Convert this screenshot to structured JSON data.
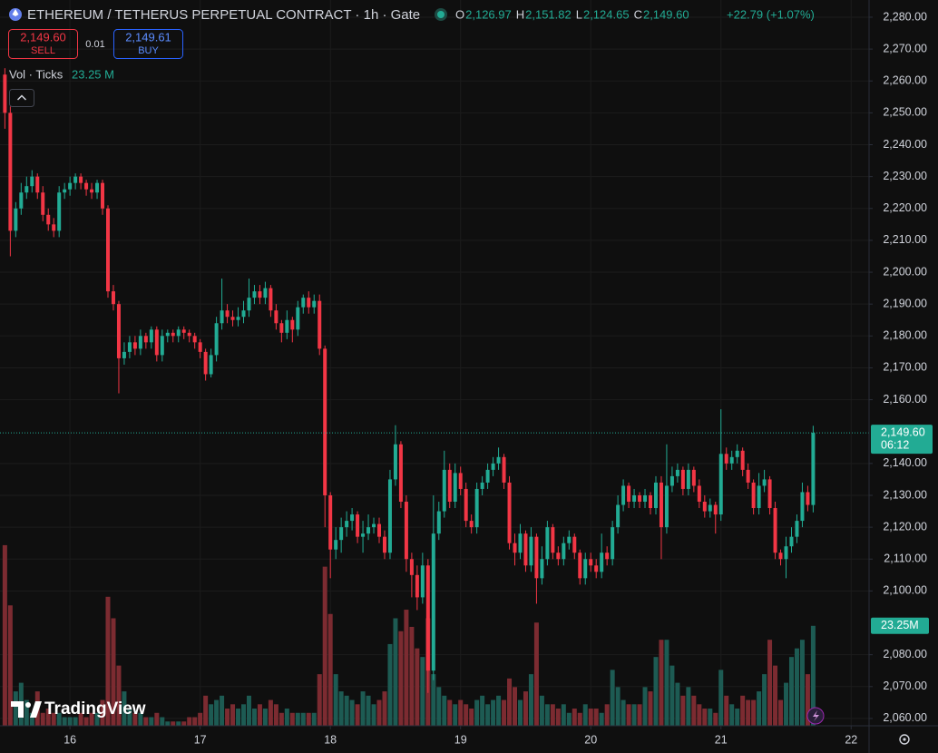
{
  "chart_data": {
    "type": "candlestick",
    "title": "ETHEREUM / TETHERUS PERPETUAL CONTRACT · 1h · Gate",
    "ohlc": [
      {
        "label": "O",
        "value": "2,126.97"
      },
      {
        "label": "H",
        "value": "2,151.82"
      },
      {
        "label": "L",
        "value": "2,124.65"
      },
      {
        "label": "C",
        "value": "2,149.60"
      }
    ],
    "change": "+22.79 (+1.07%)",
    "sell": {
      "price": "2,149.60",
      "label": "SELL"
    },
    "spread": "0.01",
    "buy": {
      "price": "2,149.61",
      "label": "BUY"
    },
    "volume_legend": {
      "label": "Vol · Ticks",
      "value": "23.25 M"
    },
    "last_price_label": "2,149.60",
    "countdown": "06:12",
    "volume_last_label": "23.25M",
    "logo": "TradingView",
    "up_color": "#22ab94",
    "down_color": "#f23645",
    "volume_up_color": "#1d5b53",
    "volume_down_color": "#7c2b31",
    "grid": true,
    "xlim": [
      -12.9,
      147.3
    ],
    "ylim": [
      2057.7,
      2285.4
    ],
    "volume_ylim": [
      0,
      50
    ],
    "xticks": [
      {
        "value": 0,
        "label": "16"
      },
      {
        "value": 24,
        "label": "17"
      },
      {
        "value": 48,
        "label": "18"
      },
      {
        "value": 72,
        "label": "19"
      },
      {
        "value": 96,
        "label": "20"
      },
      {
        "value": 120,
        "label": "21"
      },
      {
        "value": 144,
        "label": "22"
      }
    ],
    "yticks": [
      {
        "value": 2060,
        "label": "2,060.00"
      },
      {
        "value": 2070,
        "label": "2,070.00"
      },
      {
        "value": 2080,
        "label": "2,080.00"
      },
      {
        "value": 2100,
        "label": "2,100.00"
      },
      {
        "value": 2110,
        "label": "2,110.00"
      },
      {
        "value": 2120,
        "label": "2,120.00"
      },
      {
        "value": 2130,
        "label": "2,130.00"
      },
      {
        "value": 2140,
        "label": "2,140.00"
      },
      {
        "value": 2160,
        "label": "2,160.00"
      },
      {
        "value": 2170,
        "label": "2,170.00"
      },
      {
        "value": 2180,
        "label": "2,180.00"
      },
      {
        "value": 2190,
        "label": "2,190.00"
      },
      {
        "value": 2200,
        "label": "2,200.00"
      },
      {
        "value": 2210,
        "label": "2,210.00"
      },
      {
        "value": 2220,
        "label": "2,220.00"
      },
      {
        "value": 2230,
        "label": "2,230.00"
      },
      {
        "value": 2240,
        "label": "2,240.00"
      },
      {
        "value": 2250,
        "label": "2,250.00"
      },
      {
        "value": 2260,
        "label": "2,260.00"
      },
      {
        "value": 2270,
        "label": "2,270.00"
      },
      {
        "value": 2280,
        "label": "2,280.00"
      }
    ],
    "x": [
      -12,
      -11,
      -10,
      -9,
      -8,
      -7,
      -6,
      -5,
      -4,
      -3,
      -2,
      -1,
      0,
      1,
      2,
      3,
      4,
      5,
      6,
      7,
      8,
      9,
      10,
      11,
      12,
      13,
      14,
      15,
      16,
      17,
      18,
      19,
      20,
      21,
      22,
      23,
      24,
      25,
      26,
      27,
      28,
      29,
      30,
      31,
      32,
      33,
      34,
      35,
      36,
      37,
      38,
      39,
      40,
      41,
      42,
      43,
      44,
      45,
      46,
      47,
      48,
      49,
      50,
      51,
      52,
      53,
      54,
      55,
      56,
      57,
      58,
      59,
      60,
      61,
      62,
      63,
      64,
      65,
      66,
      67,
      68,
      69,
      70,
      71,
      72,
      73,
      74,
      75,
      76,
      77,
      78,
      79,
      80,
      81,
      82,
      83,
      84,
      85,
      86,
      87,
      88,
      89,
      90,
      91,
      92,
      93,
      94,
      95,
      96,
      97,
      98,
      99,
      100,
      101,
      102,
      103,
      104,
      105,
      106,
      107,
      108,
      109,
      110,
      111,
      112,
      113,
      114,
      115,
      116,
      117,
      118,
      119,
      120,
      121,
      122,
      123,
      124,
      125,
      126,
      127,
      128,
      129,
      130,
      131,
      132,
      133,
      134,
      135,
      136,
      137
    ],
    "open": [
      2262,
      2250,
      2213,
      2220,
      2225,
      2227,
      2230,
      2225,
      2218,
      2215,
      2213,
      2225,
      2226,
      2228,
      2230,
      2228,
      2226,
      2225,
      2228,
      2220,
      2194,
      2190,
      2173,
      2175,
      2178,
      2176,
      2180,
      2178,
      2182,
      2174,
      2180,
      2181,
      2180,
      2182,
      2181,
      2180,
      2178,
      2175,
      2168,
      2174,
      2184,
      2188,
      2186,
      2185,
      2186,
      2188,
      2192,
      2194,
      2192,
      2195,
      2188,
      2184,
      2181,
      2185,
      2182,
      2189,
      2192,
      2189,
      2191,
      2176,
      2130,
      2113,
      2116,
      2120,
      2122,
      2124,
      2117,
      2118,
      2120,
      2121,
      2117,
      2112,
      2135,
      2146,
      2128,
      2110,
      2105,
      2098,
      2108,
      2075,
      2118,
      2125,
      2138,
      2128,
      2137,
      2132,
      2122,
      2120,
      2132,
      2134,
      2138,
      2140,
      2142,
      2134,
      2115,
      2112,
      2118,
      2108,
      2117,
      2104,
      2110,
      2120,
      2112,
      2110,
      2115,
      2117,
      2112,
      2104,
      2110,
      2108,
      2106,
      2112,
      2110,
      2120,
      2127,
      2133,
      2128,
      2130,
      2128,
      2130,
      2126,
      2134,
      2120,
      2133,
      2136,
      2138,
      2132,
      2138,
      2133,
      2128,
      2125,
      2127,
      2124,
      2143,
      2140,
      2142,
      2144,
      2138,
      2134,
      2126,
      2133,
      2135,
      2126,
      2112,
      2110,
      2114,
      2117,
      2122,
      2131,
      2126.97
    ],
    "high": [
      2264,
      2252,
      2222,
      2228,
      2230,
      2232,
      2231,
      2227,
      2220,
      2217,
      2227,
      2228,
      2230,
      2231,
      2231,
      2229,
      2228,
      2229,
      2229,
      2221,
      2196,
      2191,
      2178,
      2180,
      2180,
      2182,
      2181,
      2183,
      2183,
      2182,
      2182,
      2182,
      2183,
      2183,
      2182,
      2181,
      2179,
      2176,
      2176,
      2186,
      2198,
      2190,
      2188,
      2189,
      2191,
      2198,
      2196,
      2196,
      2197,
      2196,
      2190,
      2185,
      2188,
      2186,
      2191,
      2193,
      2194,
      2193,
      2193,
      2177,
      2131,
      2120,
      2123,
      2125,
      2126,
      2125,
      2122,
      2124,
      2123,
      2123,
      2119,
      2138,
      2152,
      2147,
      2130,
      2112,
      2108,
      2112,
      2110,
      2130,
      2128,
      2144,
      2140,
      2140,
      2139,
      2134,
      2124,
      2134,
      2136,
      2140,
      2142,
      2145,
      2143,
      2136,
      2118,
      2121,
      2119,
      2120,
      2118,
      2114,
      2122,
      2121,
      2114,
      2117,
      2119,
      2118,
      2113,
      2112,
      2112,
      2110,
      2118,
      2114,
      2122,
      2130,
      2135,
      2134,
      2132,
      2131,
      2132,
      2131,
      2136,
      2136,
      2146,
      2139,
      2140,
      2139,
      2140,
      2139,
      2135,
      2130,
      2129,
      2128,
      2157,
      2145,
      2144,
      2146,
      2145,
      2140,
      2135,
      2137,
      2138,
      2136,
      2128,
      2113,
      2117,
      2120,
      2124,
      2134,
      2133,
      2151.82
    ],
    "low": [
      2245,
      2205,
      2211,
      2218,
      2223,
      2225,
      2223,
      2216,
      2213,
      2211,
      2211,
      2223,
      2224,
      2226,
      2226,
      2224,
      2223,
      2223,
      2218,
      2192,
      2188,
      2162,
      2171,
      2173,
      2174,
      2174,
      2176,
      2176,
      2172,
      2172,
      2178,
      2178,
      2178,
      2179,
      2178,
      2176,
      2173,
      2166,
      2167,
      2172,
      2182,
      2184,
      2183,
      2183,
      2184,
      2186,
      2190,
      2190,
      2190,
      2186,
      2182,
      2178,
      2179,
      2178,
      2180,
      2187,
      2187,
      2187,
      2174,
      2120,
      2104,
      2110,
      2112,
      2117,
      2119,
      2115,
      2112,
      2116,
      2118,
      2115,
      2110,
      2110,
      2133,
      2126,
      2106,
      2098,
      2094,
      2096,
      2068,
      2072,
      2116,
      2123,
      2126,
      2126,
      2130,
      2120,
      2118,
      2118,
      2130,
      2132,
      2136,
      2138,
      2132,
      2113,
      2108,
      2110,
      2106,
      2106,
      2096,
      2102,
      2108,
      2110,
      2108,
      2108,
      2113,
      2110,
      2102,
      2102,
      2106,
      2104,
      2104,
      2108,
      2108,
      2118,
      2125,
      2126,
      2126,
      2126,
      2126,
      2124,
      2124,
      2110,
      2118,
      2131,
      2134,
      2130,
      2130,
      2131,
      2126,
      2123,
      2123,
      2118,
      2122,
      2138,
      2138,
      2140,
      2136,
      2132,
      2124,
      2124,
      2131,
      2124,
      2110,
      2108,
      2104,
      2112,
      2115,
      2120,
      2125,
      2124.65
    ],
    "close": [
      2250,
      2213,
      2220,
      2225,
      2227,
      2230,
      2225,
      2218,
      2215,
      2213,
      2225,
      2226,
      2228,
      2230,
      2228,
      2226,
      2225,
      2228,
      2220,
      2194,
      2190,
      2173,
      2175,
      2178,
      2176,
      2180,
      2178,
      2182,
      2174,
      2180,
      2181,
      2180,
      2182,
      2181,
      2180,
      2178,
      2175,
      2168,
      2174,
      2184,
      2188,
      2186,
      2185,
      2186,
      2188,
      2192,
      2194,
      2192,
      2195,
      2188,
      2184,
      2181,
      2185,
      2182,
      2189,
      2192,
      2189,
      2191,
      2176,
      2130,
      2113,
      2116,
      2120,
      2122,
      2124,
      2117,
      2118,
      2120,
      2121,
      2117,
      2112,
      2135,
      2146,
      2128,
      2110,
      2105,
      2098,
      2108,
      2075,
      2118,
      2125,
      2138,
      2128,
      2137,
      2132,
      2122,
      2120,
      2132,
      2134,
      2138,
      2140,
      2142,
      2134,
      2115,
      2112,
      2118,
      2108,
      2117,
      2104,
      2110,
      2120,
      2112,
      2110,
      2115,
      2117,
      2112,
      2104,
      2110,
      2108,
      2106,
      2112,
      2110,
      2120,
      2127,
      2133,
      2128,
      2130,
      2128,
      2130,
      2126,
      2134,
      2120,
      2133,
      2136,
      2138,
      2132,
      2138,
      2133,
      2128,
      2125,
      2127,
      2124,
      2143,
      2140,
      2142,
      2144,
      2138,
      2134,
      2126,
      2133,
      2135,
      2126,
      2112,
      2110,
      2114,
      2117,
      2122,
      2131,
      2127,
      2149.6
    ],
    "volume": [
      42,
      28,
      8,
      10,
      6,
      3,
      8,
      3,
      4,
      3,
      3,
      2,
      2,
      2,
      3,
      2,
      3,
      3,
      6,
      30,
      25,
      14,
      8,
      4,
      3,
      3,
      2,
      2,
      3,
      2,
      1,
      1,
      1,
      1,
      2,
      2,
      3,
      7,
      5,
      6,
      7,
      4,
      5,
      4,
      5,
      7,
      4,
      5,
      4,
      6,
      5,
      3,
      4,
      3,
      3,
      3,
      3,
      3,
      12,
      37,
      26,
      12,
      8,
      7,
      6,
      5,
      8,
      7,
      5,
      6,
      8,
      19,
      25,
      22,
      27,
      23,
      18,
      16,
      25,
      12,
      9,
      7,
      6,
      5,
      6,
      5,
      4,
      6,
      7,
      5,
      6,
      7,
      6,
      11,
      9,
      6,
      8,
      12,
      24,
      7,
      5,
      5,
      4,
      5,
      3,
      4,
      3,
      5,
      4,
      4,
      3,
      5,
      13,
      9,
      6,
      5,
      5,
      5,
      9,
      8,
      16,
      20,
      20,
      14,
      10,
      7,
      9,
      7,
      5,
      4,
      4,
      3,
      13,
      7,
      5,
      4,
      7,
      6,
      6,
      8,
      12,
      20,
      14,
      6,
      10,
      16,
      18,
      20,
      12,
      23.25
    ]
  }
}
